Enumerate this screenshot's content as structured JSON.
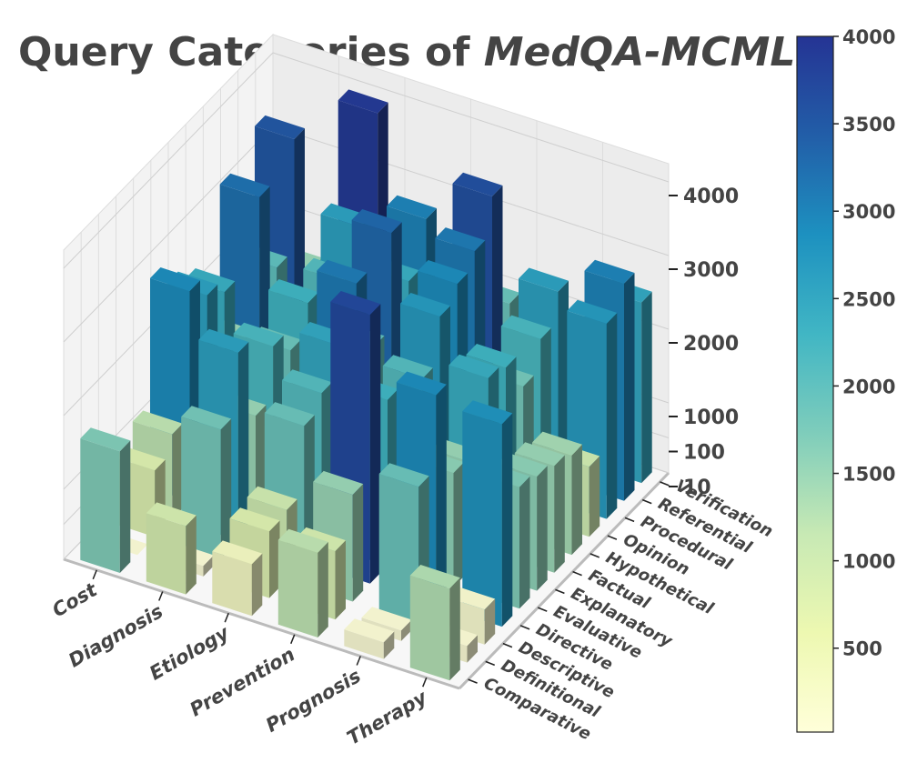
{
  "chart_data": {
    "type": "bar3d",
    "title": "Query Categories of",
    "title_emphasis": "MedQA-MCMLE",
    "categories": [
      "Cost",
      "Diagnosis",
      "Etiology",
      "Prevention",
      "Prognosis",
      "Therapy"
    ],
    "y_categories": [
      "Comparative",
      "Definitional",
      "Descriptive",
      "Directive",
      "Evaluative",
      "Explanatory",
      "Factual",
      "Hypothetical",
      "Opinion",
      "Procedural",
      "Referential",
      "Verification"
    ],
    "values": [
      [
        1700,
        5,
        800,
        1200,
        2900,
        2600,
        2400,
        1500,
        3200,
        2000,
        3500,
        1500
      ],
      [
        900,
        20,
        1800,
        2600,
        1500,
        2200,
        1900,
        2300,
        1200,
        2100,
        2600,
        3900
      ],
      [
        300,
        800,
        1000,
        1900,
        2100,
        2500,
        3100,
        2000,
        3300,
        2400,
        3000,
        2100
      ],
      [
        1200,
        900,
        1500,
        3700,
        2300,
        1600,
        2100,
        2700,
        2900,
        3100,
        3600,
        1900
      ],
      [
        30,
        20,
        1900,
        2900,
        1600,
        1500,
        2400,
        2300,
        1800,
        2200,
        2600,
        1800
      ],
      [
        1300,
        30,
        100,
        2800,
        1700,
        1600,
        1500,
        1400,
        1000,
        2700,
        3000,
        2500
      ]
    ],
    "zlim": [
      10,
      4000
    ],
    "zticks": [
      10,
      100,
      1000,
      2000,
      3000,
      4000
    ],
    "zscale": "symlog",
    "grid": true,
    "colormap": [
      "#ffffd9",
      "#edf8b1",
      "#c7e9b4",
      "#7fcdbb",
      "#41b6c4",
      "#1d91c0",
      "#225ea8",
      "#253494"
    ],
    "clim": [
      20,
      4000
    ],
    "cticks": [
      500,
      1000,
      1500,
      2000,
      2500,
      3000,
      3500,
      4000
    ]
  }
}
